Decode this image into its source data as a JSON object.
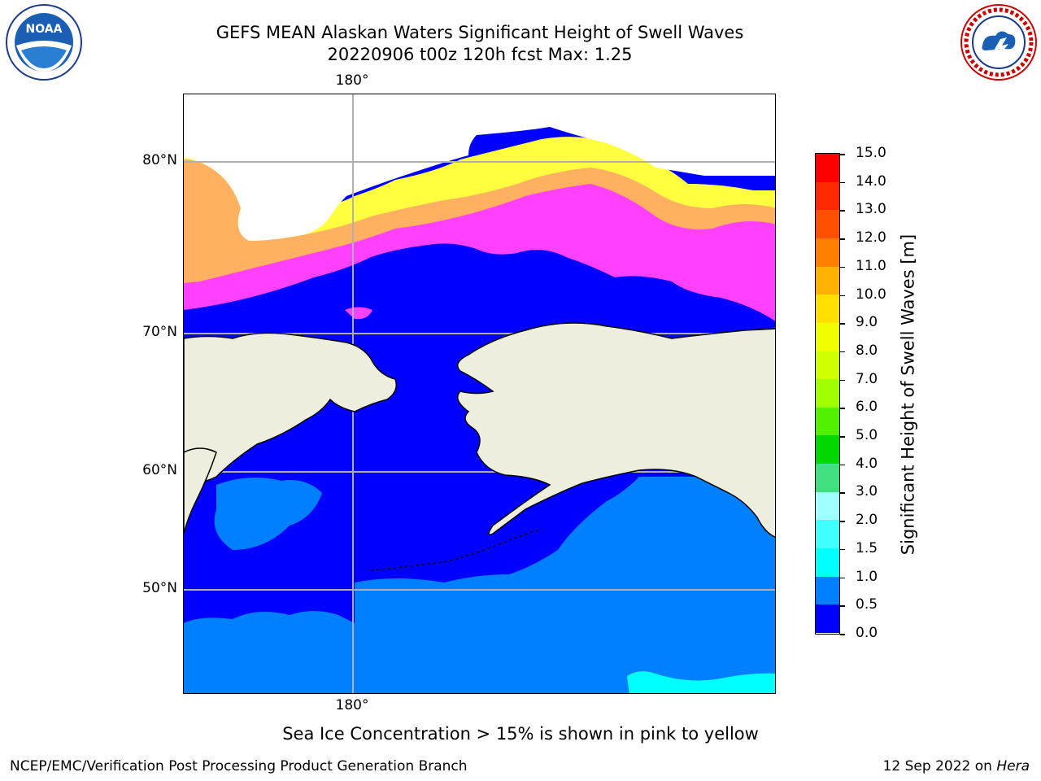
{
  "title": {
    "line1": "GEFS MEAN Alaskan Waters Significant Height of Swell Waves",
    "line2": "20220906 t00z 120h fcst   Max: 1.25"
  },
  "map": {
    "lon_labels": {
      "top": "180°",
      "bottom": "180°"
    },
    "lat_labels": [
      "80°N",
      "70°N",
      "60°N",
      "50°N"
    ],
    "colors": {
      "ocean_low": "#0000ff",
      "ocean_mid": "#0080ff",
      "ocean_high": "#00ffff",
      "land": "#eeeede",
      "ice_pink": "#ff40ff",
      "ice_orange": "#ffb060",
      "ice_yellow": "#ffff40",
      "ice_white": "#ffffff",
      "grid": "#b0b0b0"
    }
  },
  "colorbar": {
    "title": "Significant Height of Swell Waves [m]",
    "ticks": [
      "15.0",
      "14.0",
      "13.0",
      "12.0",
      "11.0",
      "10.0",
      "9.0",
      "8.0",
      "7.0",
      "6.0",
      "5.0",
      "4.0",
      "3.0",
      "2.0",
      "1.5",
      "1.0",
      "0.5",
      "0.0"
    ],
    "colors": [
      "#ff0000",
      "#ff2800",
      "#ff5000",
      "#ff8000",
      "#ffb000",
      "#ffe000",
      "#f0ff00",
      "#d0ff00",
      "#a0ff00",
      "#50f000",
      "#00d800",
      "#40e080",
      "#a0ffff",
      "#40ffff",
      "#00ffff",
      "#0080ff",
      "#0000ff"
    ]
  },
  "footnote": "Sea Ice Concentration > 15% is shown in pink to yellow",
  "credit": "NCEP/EMC/Verification Post Processing Product Generation Branch",
  "datestamp": {
    "date": "12 Sep 2022 on",
    "host": "Hera"
  },
  "logos": {
    "noaa_text": "NOAA",
    "nws_text": "NATIONAL WEATHER SERVICE"
  }
}
